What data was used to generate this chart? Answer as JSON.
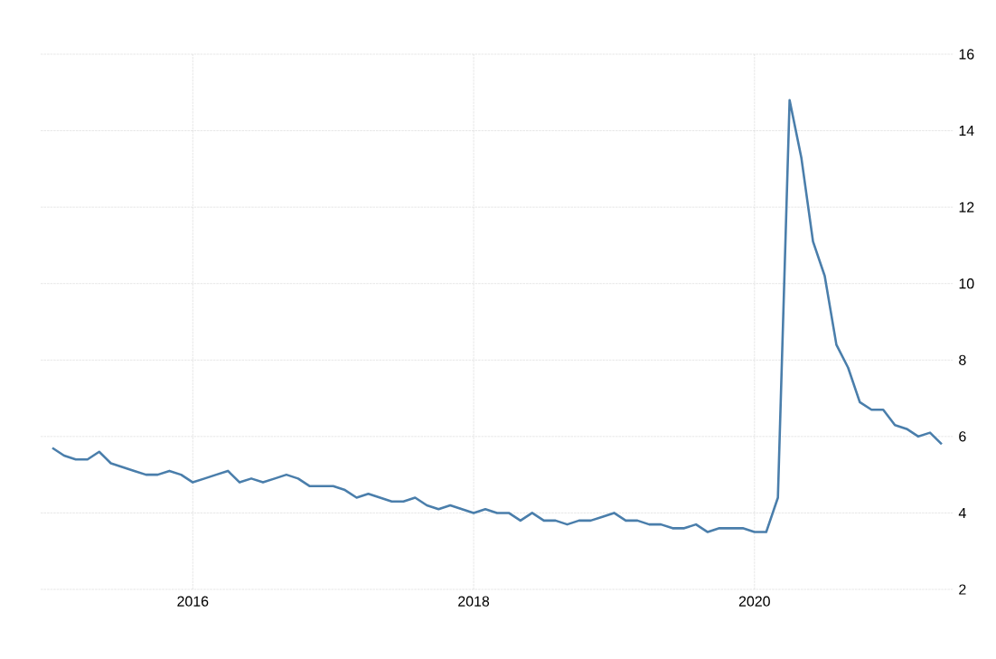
{
  "chart_data": {
    "type": "line",
    "x": [
      "2015-01",
      "2015-02",
      "2015-03",
      "2015-04",
      "2015-05",
      "2015-06",
      "2015-07",
      "2015-08",
      "2015-09",
      "2015-10",
      "2015-11",
      "2015-12",
      "2016-01",
      "2016-02",
      "2016-03",
      "2016-04",
      "2016-05",
      "2016-06",
      "2016-07",
      "2016-08",
      "2016-09",
      "2016-10",
      "2016-11",
      "2016-12",
      "2017-01",
      "2017-02",
      "2017-03",
      "2017-04",
      "2017-05",
      "2017-06",
      "2017-07",
      "2017-08",
      "2017-09",
      "2017-10",
      "2017-11",
      "2017-12",
      "2018-01",
      "2018-02",
      "2018-03",
      "2018-04",
      "2018-05",
      "2018-06",
      "2018-07",
      "2018-08",
      "2018-09",
      "2018-10",
      "2018-11",
      "2018-12",
      "2019-01",
      "2019-02",
      "2019-03",
      "2019-04",
      "2019-05",
      "2019-06",
      "2019-07",
      "2019-08",
      "2019-09",
      "2019-10",
      "2019-11",
      "2019-12",
      "2020-01",
      "2020-02",
      "2020-03",
      "2020-04",
      "2020-05",
      "2020-06",
      "2020-07",
      "2020-08",
      "2020-09",
      "2020-10",
      "2020-11",
      "2020-12",
      "2021-01",
      "2021-02",
      "2021-03",
      "2021-04",
      "2021-05"
    ],
    "series": [
      {
        "color": "#4a7eab",
        "values": [
          5.7,
          5.5,
          5.4,
          5.4,
          5.6,
          5.3,
          5.2,
          5.1,
          5.0,
          5.0,
          5.1,
          5.0,
          4.8,
          4.9,
          5.0,
          5.1,
          4.8,
          4.9,
          4.8,
          4.9,
          5.0,
          4.9,
          4.7,
          4.7,
          4.7,
          4.6,
          4.4,
          4.5,
          4.4,
          4.3,
          4.3,
          4.4,
          4.2,
          4.1,
          4.2,
          4.1,
          4.0,
          4.1,
          4.0,
          4.0,
          3.8,
          4.0,
          3.8,
          3.8,
          3.7,
          3.8,
          3.8,
          3.9,
          4.0,
          3.8,
          3.8,
          3.7,
          3.7,
          3.6,
          3.6,
          3.7,
          3.5,
          3.6,
          3.6,
          3.6,
          3.5,
          3.5,
          4.4,
          14.8,
          13.3,
          11.1,
          10.2,
          8.4,
          7.8,
          6.9,
          6.7,
          6.7,
          6.3,
          6.2,
          6.0,
          6.1,
          5.8
        ]
      }
    ],
    "xlim": [
      "2014-12",
      "2021-06"
    ],
    "xticks": [
      "2016",
      "2018",
      "2020"
    ],
    "ylim": [
      2,
      16
    ],
    "yticks": [
      2,
      4,
      6,
      8,
      10,
      12,
      14,
      16
    ],
    "grid": true,
    "marker": "none",
    "line_style": "solid"
  }
}
